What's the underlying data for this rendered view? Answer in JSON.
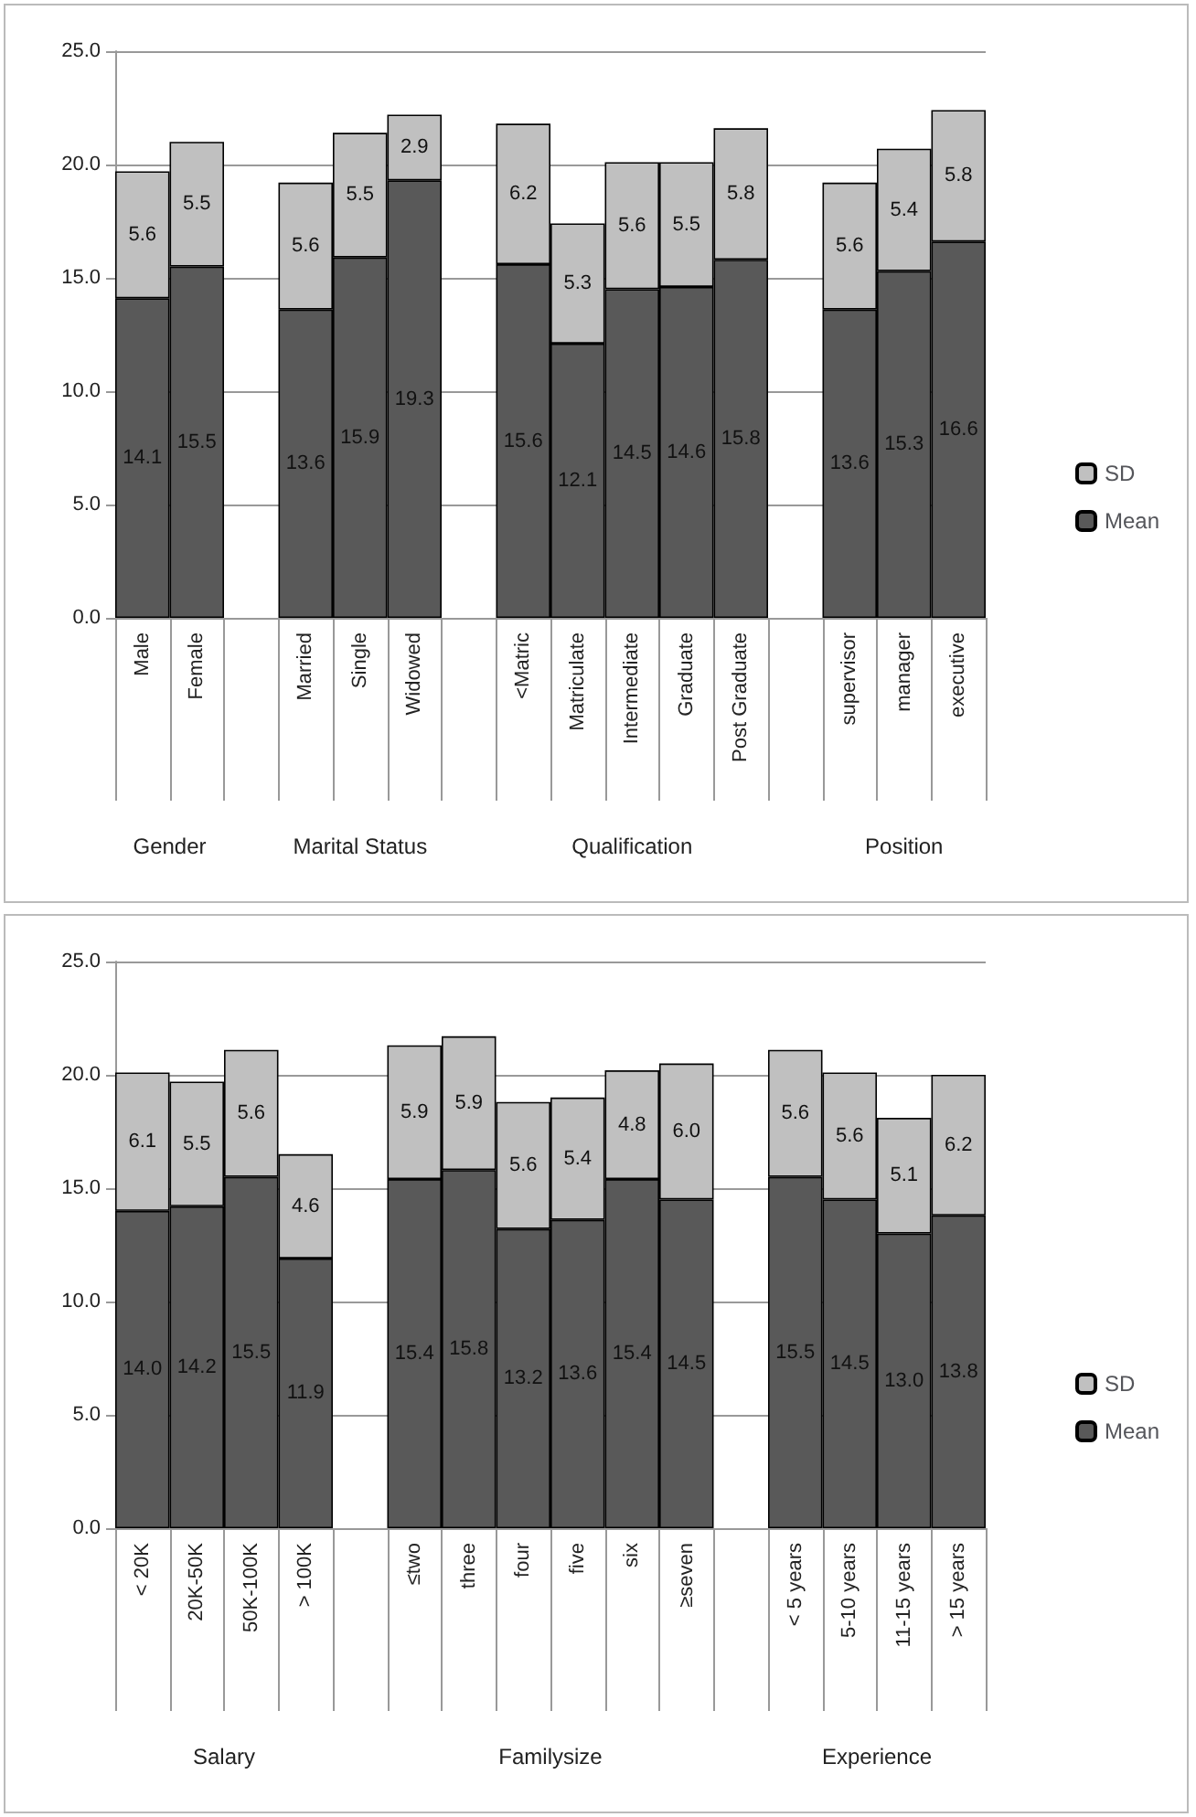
{
  "chart_data": [
    {
      "type": "bar",
      "stacked": true,
      "categories": [
        "Male",
        "Female",
        null,
        "Married",
        "Single",
        "Widowed",
        null,
        "<Matric",
        "Matriculate",
        "Intermediate",
        "Graduate",
        "Post Graduate",
        null,
        "supervisor",
        "manager",
        "executive"
      ],
      "series": [
        {
          "name": "Mean",
          "color": "#595959",
          "values": [
            14.1,
            15.5,
            null,
            13.6,
            15.9,
            19.3,
            null,
            15.6,
            12.1,
            14.5,
            14.6,
            15.8,
            null,
            13.6,
            15.3,
            16.6
          ],
          "value_labels": [
            "14.1",
            "15.5",
            null,
            "13.6",
            "15.9",
            "19.3",
            null,
            "15.6",
            "12.1",
            "14.5",
            "14.6",
            "15.8",
            null,
            "13.6",
            "15.3",
            "16.6"
          ]
        },
        {
          "name": "SD",
          "color": "#c0c0c0",
          "values": [
            5.6,
            5.5,
            null,
            5.6,
            5.5,
            2.9,
            null,
            6.2,
            5.3,
            5.6,
            5.5,
            5.8,
            null,
            5.6,
            5.4,
            5.8
          ],
          "value_labels": [
            "5.6",
            "5.5",
            null,
            "5.6",
            "5.5",
            "2.9",
            null,
            "6.2",
            "5.3",
            "5.6",
            "5.5",
            "5.8",
            null,
            "5.6",
            "5.4",
            "5.8"
          ]
        }
      ],
      "annotations": [
        "Gender",
        "Marital Status",
        "Qualification",
        "Position"
      ],
      "ylim": [
        0,
        25
      ],
      "yticks": [
        {
          "value": 0,
          "label": "0.0"
        },
        {
          "value": 5,
          "label": "5.0"
        },
        {
          "value": 10,
          "label": "10.0"
        },
        {
          "value": 15,
          "label": "15.0"
        },
        {
          "value": 20,
          "label": "20.0"
        },
        {
          "value": 25,
          "label": "25.0"
        }
      ],
      "grid": "y",
      "legend": "right"
    },
    {
      "type": "bar",
      "stacked": true,
      "categories": [
        "< 20K",
        "20K-50K",
        "50K-100K",
        "> 100K",
        null,
        "≤two",
        "three",
        "four",
        "five",
        "six",
        "≥seven",
        null,
        "< 5 years",
        "5-10 years",
        "11-15 years",
        "> 15 years"
      ],
      "series": [
        {
          "name": "Mean",
          "color": "#595959",
          "values": [
            14.0,
            14.2,
            15.5,
            11.9,
            null,
            15.4,
            15.8,
            13.2,
            13.6,
            15.4,
            14.5,
            null,
            15.5,
            14.5,
            13.0,
            13.8
          ],
          "value_labels": [
            "14.0",
            "14.2",
            "15.5",
            "11.9",
            null,
            "15.4",
            "15.8",
            "13.2",
            "13.6",
            "15.4",
            "14.5",
            null,
            "15.5",
            "14.5",
            "13.0",
            "13.8"
          ]
        },
        {
          "name": "SD",
          "color": "#c0c0c0",
          "values": [
            6.1,
            5.5,
            5.6,
            4.6,
            null,
            5.9,
            5.9,
            5.6,
            5.4,
            4.8,
            6.0,
            null,
            5.6,
            5.6,
            5.1,
            6.2
          ],
          "value_labels": [
            "6.1",
            "5.5",
            "5.6",
            "4.6",
            null,
            "5.9",
            "5.9",
            "5.6",
            "5.4",
            "4.8",
            "6.0",
            null,
            "5.6",
            "5.6",
            "5.1",
            "6.2"
          ]
        }
      ],
      "annotations": [
        "Salary",
        "Familysize",
        "Experience"
      ],
      "ylim": [
        0,
        25
      ],
      "yticks": [
        {
          "value": 0,
          "label": "0.0"
        },
        {
          "value": 5,
          "label": "5.0"
        },
        {
          "value": 10,
          "label": "10.0"
        },
        {
          "value": 15,
          "label": "15.0"
        },
        {
          "value": 20,
          "label": "20.0"
        },
        {
          "value": 25,
          "label": "25.0"
        }
      ],
      "grid": "y",
      "legend": "right"
    }
  ]
}
